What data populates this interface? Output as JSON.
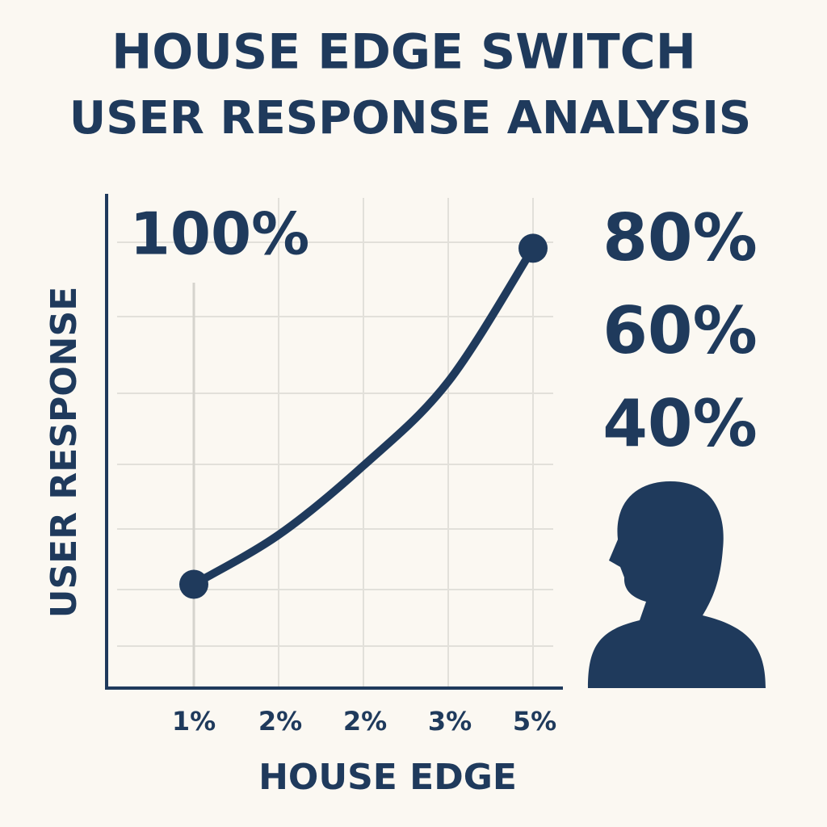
{
  "chart_data": {
    "type": "line",
    "title": "HOUSE EDGE SWITCH",
    "subtitle": "USER RESPONSE ANALYSIS",
    "x_label": "HOUSE EDGE",
    "y_label": "USER RESPONSE",
    "categories": [
      "1%",
      "2%",
      "2%",
      "3%",
      "5%"
    ],
    "values": [
      21,
      31,
      45,
      62,
      89
    ],
    "color": "#1f3a5c",
    "ylim": [
      0,
      100
    ],
    "grid": true,
    "annotations": [
      "100%",
      "80%",
      "60%",
      "40%"
    ]
  }
}
